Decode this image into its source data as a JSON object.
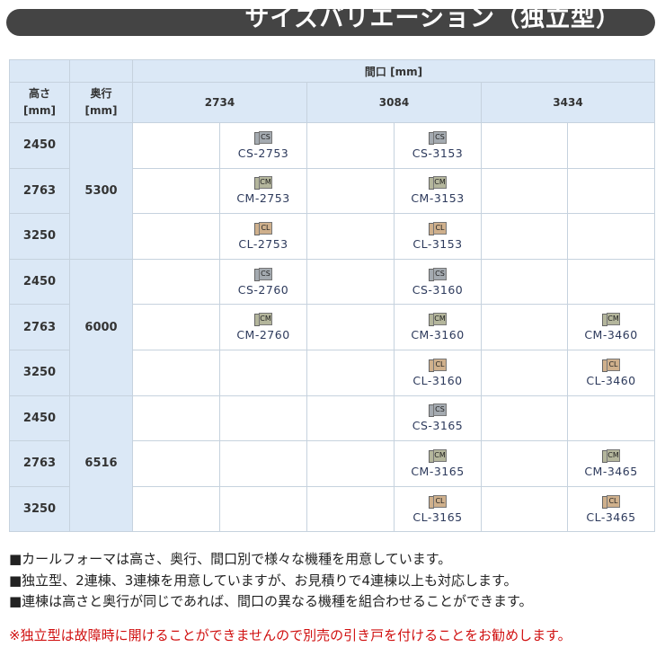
{
  "title": "サイズバリエーション（独立型）",
  "colors": {
    "CS": "#a4aab0",
    "CM": "#b4b69c",
    "CL": "#cfb08c",
    "header_bg": "#dbe8f6",
    "warning": "#d01010"
  },
  "table": {
    "width_header": "間口 [mm]",
    "height_header": "高さ\n[mm]",
    "depth_header": "奥行\n[mm]",
    "widths": [
      "2734",
      "3084",
      "3434"
    ],
    "groups": [
      {
        "depth": "5300",
        "rows": [
          {
            "height": "2450",
            "cells": [
              null,
              {
                "type": "CS",
                "code": "CS-2753"
              },
              null,
              {
                "type": "CS",
                "code": "CS-3153"
              },
              null,
              null
            ]
          },
          {
            "height": "2763",
            "cells": [
              null,
              {
                "type": "CM",
                "code": "CM-2753"
              },
              null,
              {
                "type": "CM",
                "code": "CM-3153"
              },
              null,
              null
            ]
          },
          {
            "height": "3250",
            "cells": [
              null,
              {
                "type": "CL",
                "code": "CL-2753"
              },
              null,
              {
                "type": "CL",
                "code": "CL-3153"
              },
              null,
              null
            ]
          }
        ]
      },
      {
        "depth": "6000",
        "rows": [
          {
            "height": "2450",
            "cells": [
              null,
              {
                "type": "CS",
                "code": "CS-2760"
              },
              null,
              {
                "type": "CS",
                "code": "CS-3160"
              },
              null,
              null
            ]
          },
          {
            "height": "2763",
            "cells": [
              null,
              {
                "type": "CM",
                "code": "CM-2760"
              },
              null,
              {
                "type": "CM",
                "code": "CM-3160"
              },
              null,
              {
                "type": "CM",
                "code": "CM-3460"
              }
            ]
          },
          {
            "height": "3250",
            "cells": [
              null,
              null,
              null,
              {
                "type": "CL",
                "code": "CL-3160"
              },
              null,
              {
                "type": "CL",
                "code": "CL-3460"
              }
            ]
          }
        ]
      },
      {
        "depth": "6516",
        "rows": [
          {
            "height": "2450",
            "cells": [
              null,
              null,
              null,
              {
                "type": "CS",
                "code": "CS-3165"
              },
              null,
              null
            ]
          },
          {
            "height": "2763",
            "cells": [
              null,
              null,
              null,
              {
                "type": "CM",
                "code": "CM-3165"
              },
              null,
              {
                "type": "CM",
                "code": "CM-3465"
              }
            ]
          },
          {
            "height": "3250",
            "cells": [
              null,
              null,
              null,
              {
                "type": "CL",
                "code": "CL-3165"
              },
              null,
              {
                "type": "CL",
                "code": "CL-3465"
              }
            ]
          }
        ]
      }
    ]
  },
  "notes": [
    "■カールフォーマは高さ、奥行、間口別で様々な機種を用意しています。",
    "■独立型、2連棟、3連棟を用意していますが、お見積りで4連棟以上も対応します。",
    "■連棟は高さと奥行が同じであれば、間口の異なる機種を組合わせることができます。"
  ],
  "warning": "※独立型は故障時に開けることができませんので別売の引き戸を付けることをお勧めします。"
}
